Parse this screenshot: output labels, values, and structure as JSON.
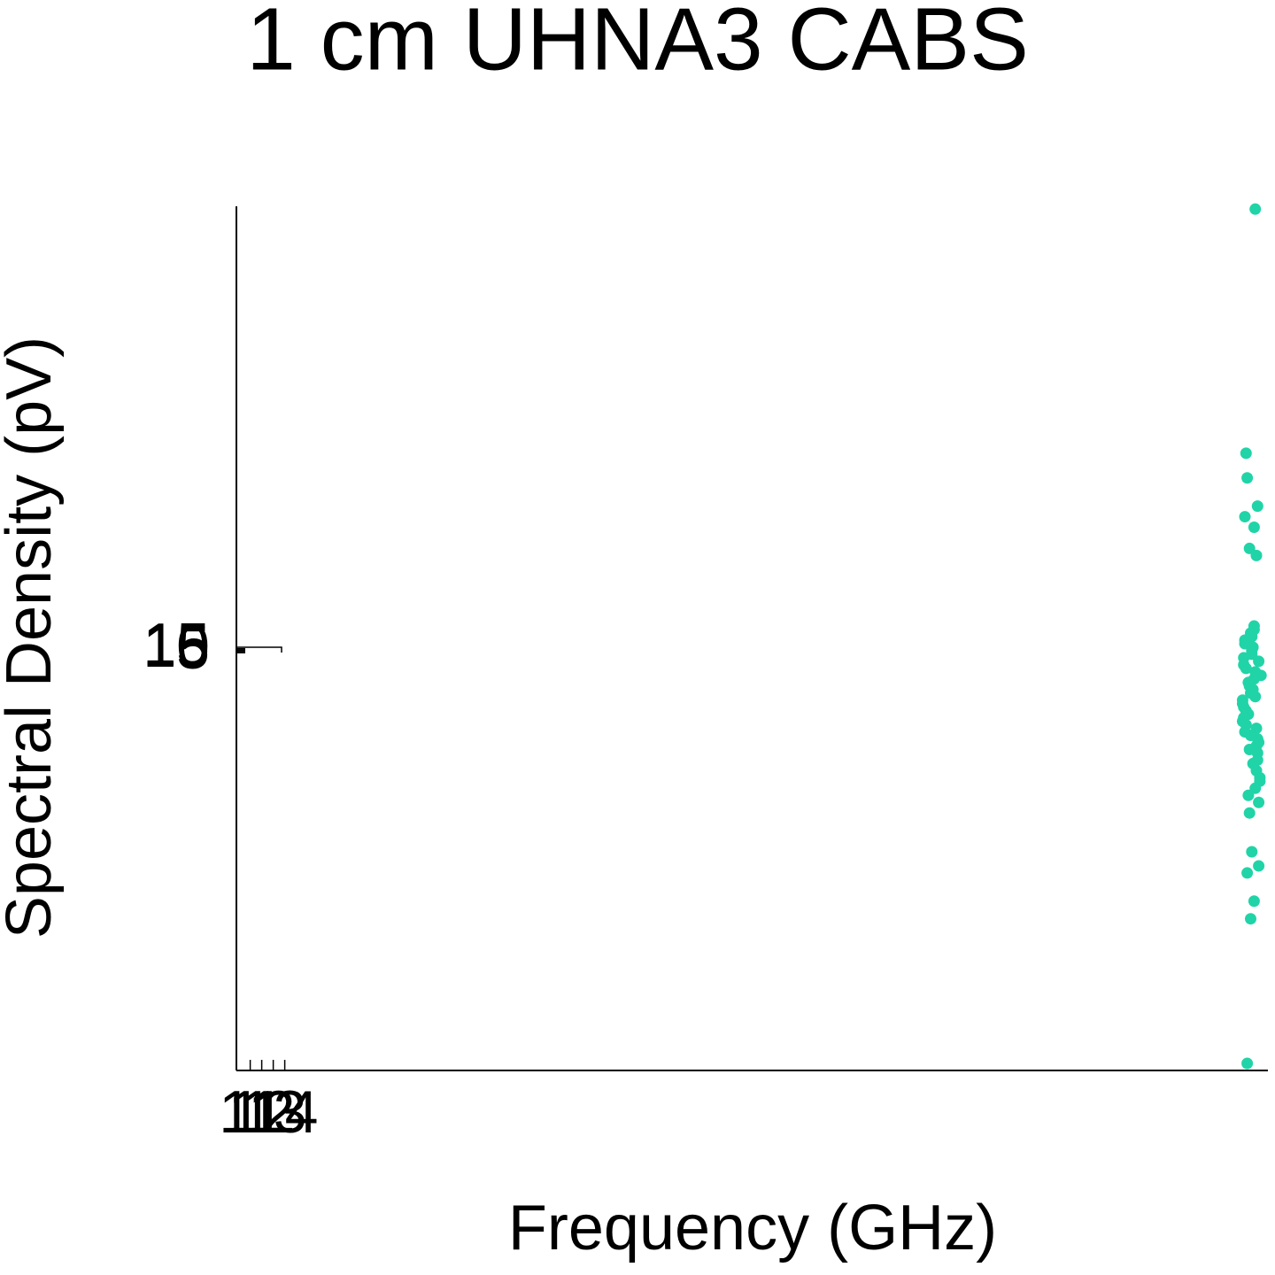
{
  "chart_data": {
    "type": "scatter",
    "title": "1 cm UHNA3 CABS",
    "xlabel": "Frequency (GHz)",
    "ylabel": "Spectral Density (pV)",
    "color": "#20d4a8",
    "xlim": [
      9.8,
      99.4
    ],
    "xticks": [
      11,
      12,
      13,
      14
    ],
    "ylim": [
      -1180,
      1270
    ],
    "yticks": [
      5,
      10,
      15
    ],
    "x": [
      98.3,
      97.6,
      97.5,
      97.6,
      98.5,
      97.4,
      98.2,
      97.8,
      98.4,
      97.9,
      98.2,
      97.6,
      98.0,
      98.6,
      97.3,
      97.7,
      98.1,
      98.5,
      97.4,
      97.9,
      98.3,
      98.7,
      97.5,
      98.0,
      98.4,
      97.2,
      97.8,
      98.2,
      98.6,
      97.3,
      97.7,
      98.1,
      98.5,
      97.4,
      97.9,
      98.3,
      98.8,
      97.5,
      98.0,
      98.4,
      97.2,
      97.8,
      98.2,
      98.6,
      97.3,
      97.7,
      98.1,
      98.5,
      97.4,
      97.9,
      98.3,
      98.7,
      97.5,
      98.0,
      98.4,
      97.2,
      97.8,
      98.2,
      98.6,
      97.3
    ],
    "values": [
      1262,
      -1160,
      570,
      500,
      420,
      390,
      360,
      300,
      280,
      -750,
      -700,
      -620,
      -560,
      -600,
      -150,
      -80,
      20,
      -300,
      -220,
      60,
      -120,
      -350,
      -40,
      10,
      -260,
      -190,
      -90,
      80,
      -420,
      -30,
      -170,
      -310,
      -240,
      40,
      -110,
      -380,
      -60,
      -200,
      0,
      -330,
      -140,
      -270,
      70,
      -20,
      -180,
      -400,
      -100,
      -280,
      30,
      -230,
      -50,
      -360,
      -160,
      50,
      -210,
      -130,
      -450,
      -70,
      -250,
      -10
    ]
  }
}
